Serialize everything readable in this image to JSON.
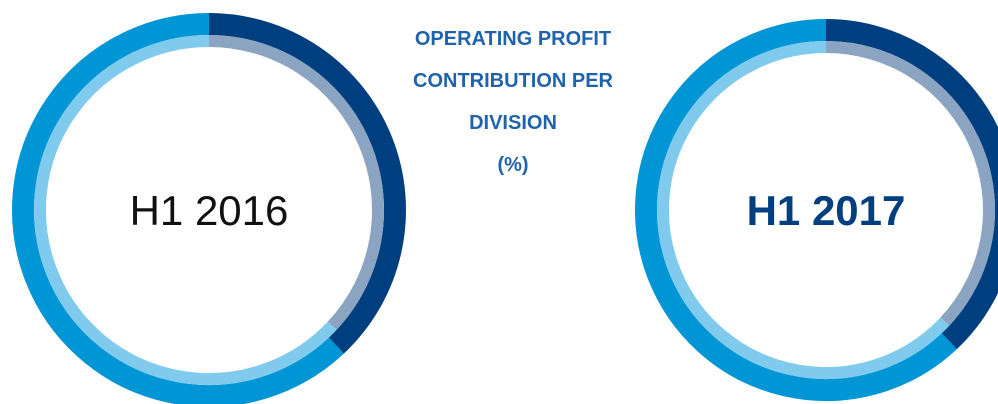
{
  "header": {
    "title": "OPERATING PROFIT CONTRIBUTION PER DIVISION",
    "unit": "(%)"
  },
  "chart_data": [
    {
      "type": "donut",
      "title": "H1 2016",
      "series": [
        {
          "values": [
            38,
            62
          ],
          "colors": [
            "#003f7f",
            "#0096d6"
          ]
        },
        {
          "values": [
            37,
            63
          ],
          "colors": [
            "#8aa4c2",
            "#80caee"
          ]
        }
      ]
    },
    {
      "type": "donut",
      "title": "H1 2017",
      "series": [
        {
          "values": [
            38,
            62
          ],
          "colors": [
            "#003f7f",
            "#0096d6"
          ]
        },
        {
          "values": [
            37,
            63
          ],
          "colors": [
            "#8aa4c2",
            "#80caee"
          ]
        }
      ]
    }
  ]
}
